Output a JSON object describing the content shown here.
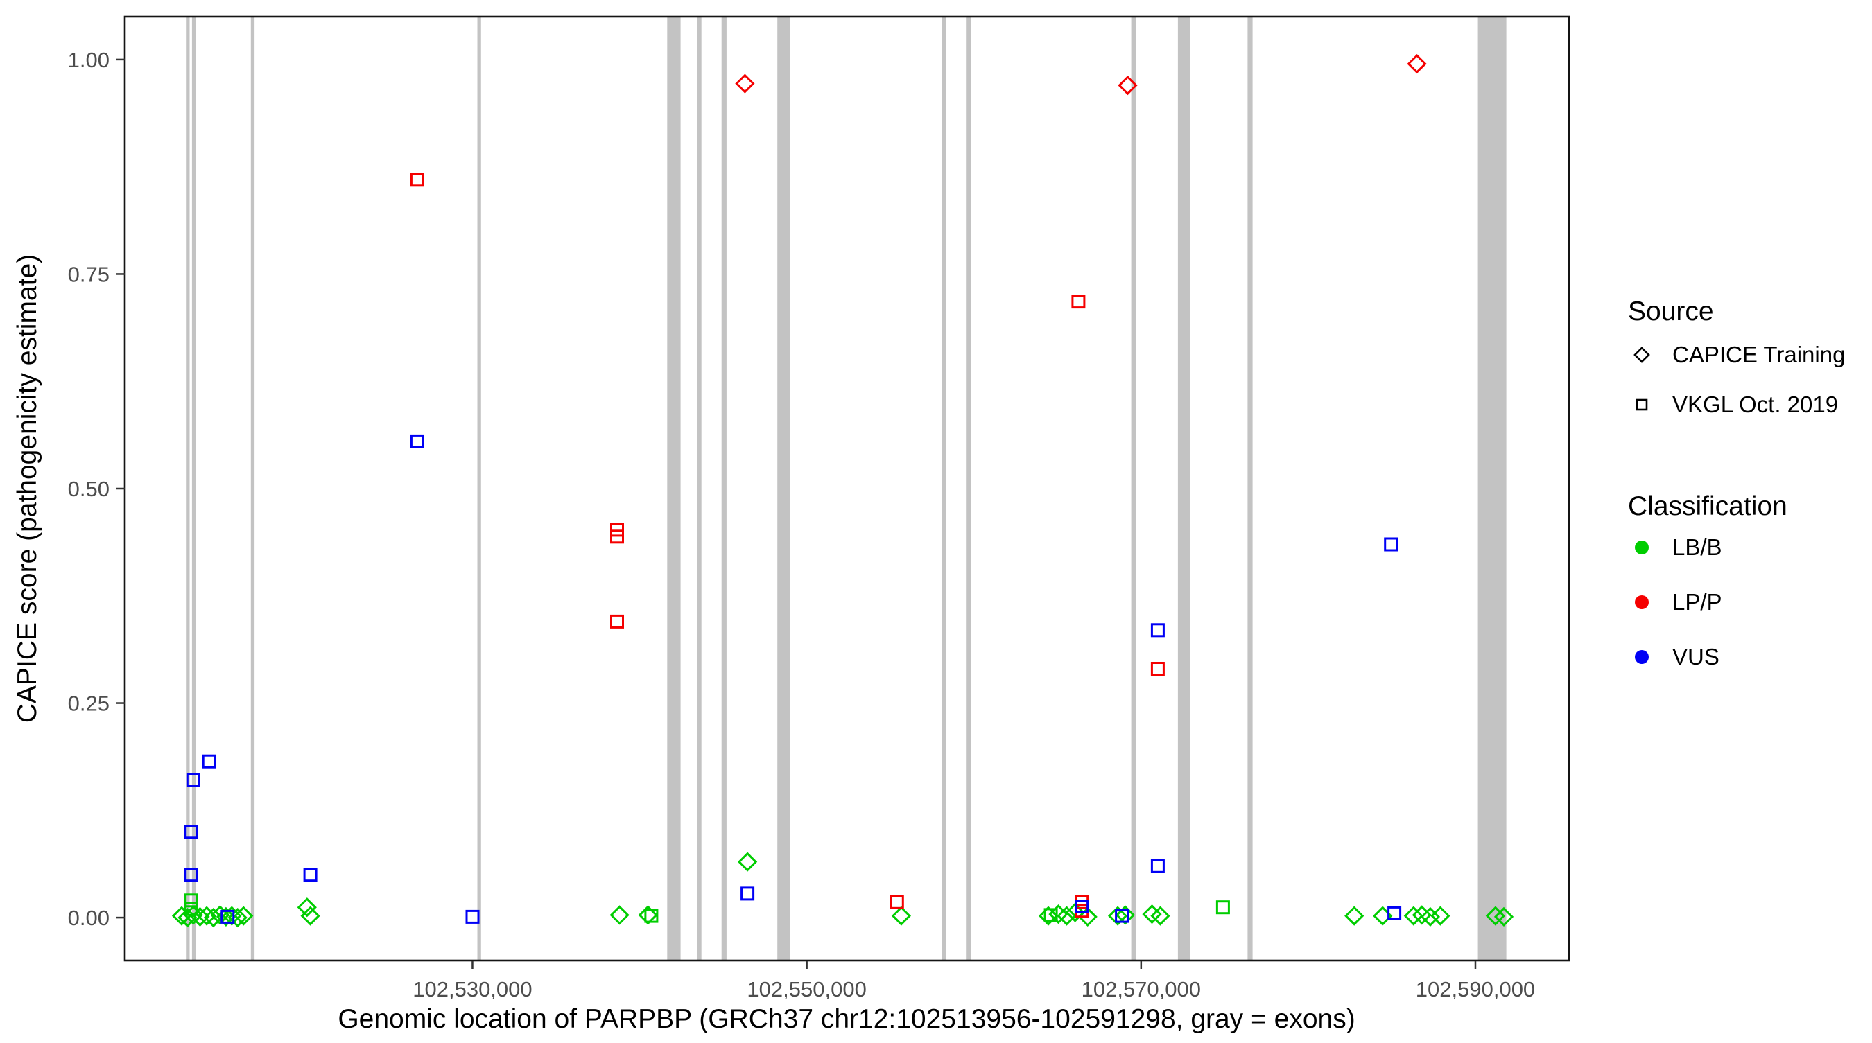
{
  "chart_data": {
    "type": "scatter",
    "xlabel": "Genomic location of PARPBP (GRCh37 chr12:102513956-102591298, gray = exons)",
    "ylabel": "CAPICE score (pathogenicity estimate)",
    "xlim": [
      102509200,
      102595600
    ],
    "ylim": [
      -0.05,
      1.05
    ],
    "grid": "off",
    "x_ticks": [
      {
        "value": 102530000,
        "label": "102,530,000"
      },
      {
        "value": 102550000,
        "label": "102,550,000"
      },
      {
        "value": 102570000,
        "label": "102,570,000"
      },
      {
        "value": 102590000,
        "label": "102,590,000"
      }
    ],
    "y_ticks": [
      {
        "value": 0.0,
        "label": "0.00"
      },
      {
        "value": 0.25,
        "label": "0.25"
      },
      {
        "value": 0.5,
        "label": "0.50"
      },
      {
        "value": 0.75,
        "label": "0.75"
      },
      {
        "value": 1.0,
        "label": "1.00"
      }
    ],
    "exon_color": "#c3c3c3",
    "exons": [
      [
        102512860,
        102513080
      ],
      [
        102513220,
        102513440
      ],
      [
        102516740,
        102516960
      ],
      [
        102530290,
        102530510
      ],
      [
        102541650,
        102542450
      ],
      [
        102543430,
        102543700
      ],
      [
        102544900,
        102545200
      ],
      [
        102548240,
        102548980
      ],
      [
        102558060,
        102558350
      ],
      [
        102559520,
        102559820
      ],
      [
        102569410,
        102569710
      ],
      [
        102572200,
        102572930
      ],
      [
        102576370,
        102576670
      ],
      [
        102590150,
        102591850
      ]
    ],
    "classification_colors": {
      "LB/B": "#00cd00",
      "LP/P": "#f50000",
      "VUS": "#0000f5"
    },
    "series": [
      {
        "name": "CAPICE Training",
        "shape": "diamond",
        "points": [
          {
            "x": 102512600,
            "y": 0.002,
            "c": "LB/B"
          },
          {
            "x": 102512950,
            "y": 0.0,
            "c": "LB/B"
          },
          {
            "x": 102513300,
            "y": 0.003,
            "c": "LB/B"
          },
          {
            "x": 102513700,
            "y": 0.001,
            "c": "LB/B"
          },
          {
            "x": 102514100,
            "y": 0.002,
            "c": "LB/B"
          },
          {
            "x": 102514500,
            "y": 0.0,
            "c": "LB/B"
          },
          {
            "x": 102514900,
            "y": 0.003,
            "c": "LB/B"
          },
          {
            "x": 102515250,
            "y": 0.001,
            "c": "LB/B"
          },
          {
            "x": 102515600,
            "y": 0.002,
            "c": "LB/B"
          },
          {
            "x": 102515950,
            "y": 0.0,
            "c": "LB/B"
          },
          {
            "x": 102516300,
            "y": 0.002,
            "c": "LB/B"
          },
          {
            "x": 102520100,
            "y": 0.012,
            "c": "LB/B"
          },
          {
            "x": 102520300,
            "y": 0.002,
            "c": "LB/B"
          },
          {
            "x": 102538800,
            "y": 0.003,
            "c": "LB/B"
          },
          {
            "x": 102540500,
            "y": 0.003,
            "c": "LB/B"
          },
          {
            "x": 102546450,
            "y": 0.065,
            "c": "LB/B"
          },
          {
            "x": 102546300,
            "y": 0.972,
            "c": "LP/P"
          },
          {
            "x": 102555650,
            "y": 0.002,
            "c": "LB/B"
          },
          {
            "x": 102564450,
            "y": 0.002,
            "c": "LB/B"
          },
          {
            "x": 102565050,
            "y": 0.004,
            "c": "LB/B"
          },
          {
            "x": 102565550,
            "y": 0.002,
            "c": "LB/B"
          },
          {
            "x": 102566050,
            "y": 0.006,
            "c": "LB/B"
          },
          {
            "x": 102566800,
            "y": 0.001,
            "c": "LB/B"
          },
          {
            "x": 102568600,
            "y": 0.002,
            "c": "LB/B"
          },
          {
            "x": 102569050,
            "y": 0.003,
            "c": "LB/B"
          },
          {
            "x": 102569200,
            "y": 0.97,
            "c": "LP/P"
          },
          {
            "x": 102570650,
            "y": 0.004,
            "c": "LB/B"
          },
          {
            "x": 102571150,
            "y": 0.002,
            "c": "LB/B"
          },
          {
            "x": 102582750,
            "y": 0.002,
            "c": "LB/B"
          },
          {
            "x": 102584450,
            "y": 0.002,
            "c": "LB/B"
          },
          {
            "x": 102586300,
            "y": 0.002,
            "c": "LB/B"
          },
          {
            "x": 102586500,
            "y": 0.995,
            "c": "LP/P"
          },
          {
            "x": 102586800,
            "y": 0.003,
            "c": "LB/B"
          },
          {
            "x": 102587300,
            "y": 0.001,
            "c": "LB/B"
          },
          {
            "x": 102587900,
            "y": 0.002,
            "c": "LB/B"
          },
          {
            "x": 102591200,
            "y": 0.002,
            "c": "LB/B"
          },
          {
            "x": 102591700,
            "y": 0.001,
            "c": "LB/B"
          }
        ]
      },
      {
        "name": "VKGL Oct. 2019",
        "shape": "square",
        "points": [
          {
            "x": 102513150,
            "y": 0.02,
            "c": "LB/B"
          },
          {
            "x": 102513150,
            "y": 0.01,
            "c": "LB/B"
          },
          {
            "x": 102513150,
            "y": 0.1,
            "c": "VUS"
          },
          {
            "x": 102513150,
            "y": 0.05,
            "c": "VUS"
          },
          {
            "x": 102513300,
            "y": 0.16,
            "c": "VUS"
          },
          {
            "x": 102514250,
            "y": 0.182,
            "c": "VUS"
          },
          {
            "x": 102515350,
            "y": 0.001,
            "c": "VUS"
          },
          {
            "x": 102520300,
            "y": 0.05,
            "c": "VUS"
          },
          {
            "x": 102526700,
            "y": 0.86,
            "c": "LP/P"
          },
          {
            "x": 102526700,
            "y": 0.555,
            "c": "VUS"
          },
          {
            "x": 102530000,
            "y": 0.001,
            "c": "VUS"
          },
          {
            "x": 102538650,
            "y": 0.452,
            "c": "LP/P"
          },
          {
            "x": 102538650,
            "y": 0.444,
            "c": "LP/P"
          },
          {
            "x": 102538650,
            "y": 0.345,
            "c": "LP/P"
          },
          {
            "x": 102540700,
            "y": 0.002,
            "c": "LB/B"
          },
          {
            "x": 102546450,
            "y": 0.028,
            "c": "VUS"
          },
          {
            "x": 102555400,
            "y": 0.018,
            "c": "LP/P"
          },
          {
            "x": 102564600,
            "y": 0.003,
            "c": "LB/B"
          },
          {
            "x": 102566250,
            "y": 0.718,
            "c": "LP/P"
          },
          {
            "x": 102566450,
            "y": 0.018,
            "c": "LP/P"
          },
          {
            "x": 102566450,
            "y": 0.008,
            "c": "LP/P"
          },
          {
            "x": 102566450,
            "y": 0.013,
            "c": "VUS"
          },
          {
            "x": 102568850,
            "y": 0.002,
            "c": "VUS"
          },
          {
            "x": 102571000,
            "y": 0.335,
            "c": "VUS"
          },
          {
            "x": 102571000,
            "y": 0.29,
            "c": "LP/P"
          },
          {
            "x": 102571000,
            "y": 0.06,
            "c": "VUS"
          },
          {
            "x": 102574900,
            "y": 0.012,
            "c": "LB/B"
          },
          {
            "x": 102584950,
            "y": 0.435,
            "c": "VUS"
          },
          {
            "x": 102585150,
            "y": 0.005,
            "c": "VUS"
          }
        ]
      }
    ],
    "legend": {
      "source_title": "Source",
      "source_items": [
        {
          "label": "CAPICE Training",
          "shape": "diamond"
        },
        {
          "label": "VKGL Oct. 2019",
          "shape": "square"
        }
      ],
      "classification_title": "Classification",
      "classification_items": [
        {
          "label": "LB/B",
          "color": "#00cd00"
        },
        {
          "label": "LP/P",
          "color": "#f50000"
        },
        {
          "label": "VUS",
          "color": "#0000f5"
        }
      ],
      "position": "right"
    }
  }
}
